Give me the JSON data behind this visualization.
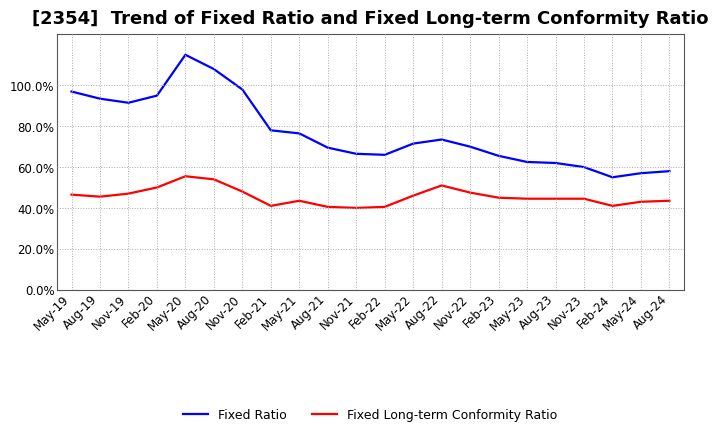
{
  "title": "[2354]  Trend of Fixed Ratio and Fixed Long-term Conformity Ratio",
  "x_labels": [
    "May-19",
    "Aug-19",
    "Nov-19",
    "Feb-20",
    "May-20",
    "Aug-20",
    "Nov-20",
    "Feb-21",
    "May-21",
    "Aug-21",
    "Nov-21",
    "Feb-22",
    "May-22",
    "Aug-22",
    "Nov-22",
    "Feb-23",
    "May-23",
    "Aug-23",
    "Nov-23",
    "Feb-24",
    "May-24",
    "Aug-24"
  ],
  "fixed_ratio": [
    97.0,
    93.5,
    91.5,
    95.0,
    115.0,
    108.0,
    98.0,
    78.0,
    76.5,
    69.5,
    66.5,
    66.0,
    71.5,
    73.5,
    70.0,
    65.5,
    62.5,
    62.0,
    60.0,
    55.0,
    57.0,
    58.0
  ],
  "fixed_lt_ratio": [
    46.5,
    45.5,
    47.0,
    50.0,
    55.5,
    54.0,
    48.0,
    41.0,
    43.5,
    40.5,
    40.0,
    40.5,
    46.0,
    51.0,
    47.5,
    45.0,
    44.5,
    44.5,
    44.5,
    41.0,
    43.0,
    43.5
  ],
  "fixed_ratio_color": "#0000ff",
  "fixed_lt_ratio_color": "#ff0000",
  "ylim": [
    0.0,
    125.0
  ],
  "yticks": [
    0.0,
    20.0,
    40.0,
    60.0,
    80.0,
    100.0
  ],
  "bg_color": "#ffffff",
  "grid_color": "#aaaaaa",
  "line_width": 1.6,
  "title_fontsize": 13,
  "tick_fontsize": 8.5,
  "legend_fontsize": 9
}
